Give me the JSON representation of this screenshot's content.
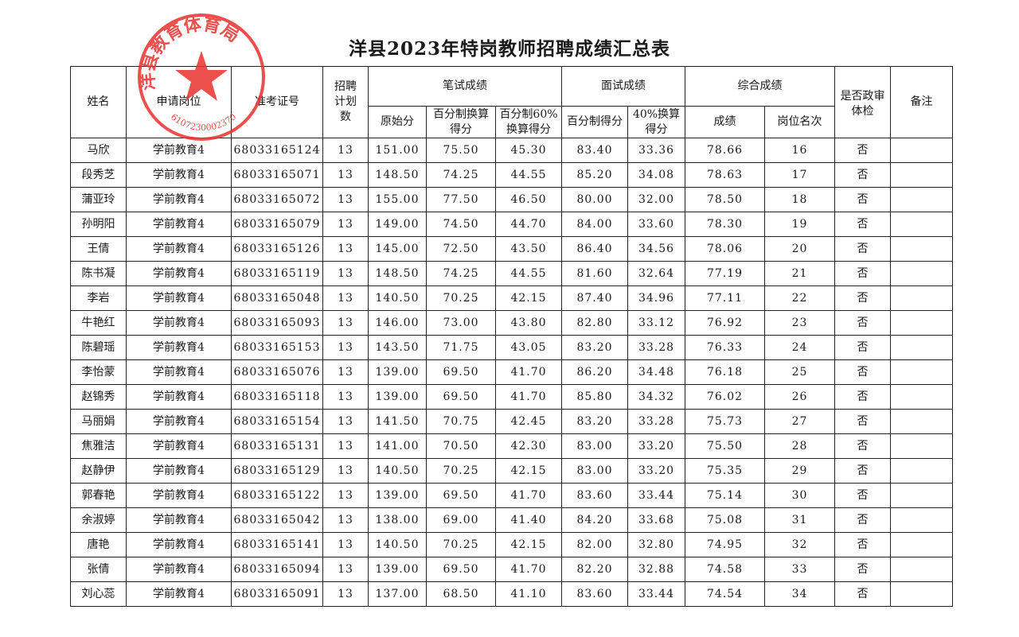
{
  "title": "洋县2023年特岗教师招聘成绩汇总表",
  "stamp": {
    "text": "洋县教育体育局",
    "code": "6107230002370",
    "color": "#e8322f"
  },
  "headers": {
    "name": "姓名",
    "position": "申请岗位",
    "exam_id": "准考证号",
    "plan": "招聘计划数",
    "written": "笔试成绩",
    "raw": "原始分",
    "pct": "百分制换算得分",
    "pct60": "百分制60%换算得分",
    "interview": "面试成绩",
    "int_pct": "百分制得分",
    "int40": "40%换算得分",
    "total": "综合成绩",
    "score": "成绩",
    "rank": "岗位名次",
    "check": "是否政审体检",
    "note": "备注"
  },
  "rows": [
    [
      "马欣",
      "学前教育4",
      "68033165124",
      "13",
      "151.00",
      "75.50",
      "45.30",
      "83.40",
      "33.36",
      "78.66",
      "16",
      "否",
      ""
    ],
    [
      "段秀芝",
      "学前教育4",
      "68033165071",
      "13",
      "148.50",
      "74.25",
      "44.55",
      "85.20",
      "34.08",
      "78.63",
      "17",
      "否",
      ""
    ],
    [
      "蒲亚玲",
      "学前教育4",
      "68033165072",
      "13",
      "155.00",
      "77.50",
      "46.50",
      "80.00",
      "32.00",
      "78.50",
      "18",
      "否",
      ""
    ],
    [
      "孙明阳",
      "学前教育4",
      "68033165079",
      "13",
      "149.00",
      "74.50",
      "44.70",
      "84.00",
      "33.60",
      "78.30",
      "19",
      "否",
      ""
    ],
    [
      "王倩",
      "学前教育4",
      "68033165126",
      "13",
      "145.00",
      "72.50",
      "43.50",
      "86.40",
      "34.56",
      "78.06",
      "20",
      "否",
      ""
    ],
    [
      "陈书凝",
      "学前教育4",
      "68033165119",
      "13",
      "148.50",
      "74.25",
      "44.55",
      "81.60",
      "32.64",
      "77.19",
      "21",
      "否",
      ""
    ],
    [
      "李岩",
      "学前教育4",
      "68033165048",
      "13",
      "140.50",
      "70.25",
      "42.15",
      "87.40",
      "34.96",
      "77.11",
      "22",
      "否",
      ""
    ],
    [
      "牛艳红",
      "学前教育4",
      "68033165093",
      "13",
      "146.00",
      "73.00",
      "43.80",
      "82.80",
      "33.12",
      "76.92",
      "23",
      "否",
      ""
    ],
    [
      "陈碧瑶",
      "学前教育4",
      "68033165153",
      "13",
      "143.50",
      "71.75",
      "43.05",
      "83.20",
      "33.28",
      "76.33",
      "24",
      "否",
      ""
    ],
    [
      "李怡蒙",
      "学前教育4",
      "68033165076",
      "13",
      "139.00",
      "69.50",
      "41.70",
      "86.20",
      "34.48",
      "76.18",
      "25",
      "否",
      ""
    ],
    [
      "赵锦秀",
      "学前教育4",
      "68033165118",
      "13",
      "139.00",
      "69.50",
      "41.70",
      "85.80",
      "34.32",
      "76.02",
      "26",
      "否",
      ""
    ],
    [
      "马丽娟",
      "学前教育4",
      "68033165154",
      "13",
      "141.50",
      "70.75",
      "42.45",
      "83.20",
      "33.28",
      "75.73",
      "27",
      "否",
      ""
    ],
    [
      "焦雅洁",
      "学前教育4",
      "68033165131",
      "13",
      "141.00",
      "70.50",
      "42.30",
      "83.00",
      "33.20",
      "75.50",
      "28",
      "否",
      ""
    ],
    [
      "赵静伊",
      "学前教育4",
      "68033165129",
      "13",
      "140.50",
      "70.25",
      "42.15",
      "83.00",
      "33.20",
      "75.35",
      "29",
      "否",
      ""
    ],
    [
      "郭春艳",
      "学前教育4",
      "68033165122",
      "13",
      "139.00",
      "69.50",
      "41.70",
      "83.60",
      "33.44",
      "75.14",
      "30",
      "否",
      ""
    ],
    [
      "余淑婷",
      "学前教育4",
      "68033165042",
      "13",
      "138.00",
      "69.00",
      "41.40",
      "84.20",
      "33.68",
      "75.08",
      "31",
      "否",
      ""
    ],
    [
      "唐艳",
      "学前教育4",
      "68033165141",
      "13",
      "140.50",
      "70.25",
      "42.15",
      "82.00",
      "32.80",
      "74.95",
      "32",
      "否",
      ""
    ],
    [
      "张倩",
      "学前教育4",
      "68033165094",
      "13",
      "139.00",
      "69.50",
      "41.70",
      "82.20",
      "32.88",
      "74.58",
      "33",
      "否",
      ""
    ],
    [
      "刘心蕊",
      "学前教育4",
      "68033165091",
      "13",
      "137.00",
      "68.50",
      "41.10",
      "83.60",
      "33.44",
      "74.54",
      "34",
      "否",
      ""
    ]
  ]
}
